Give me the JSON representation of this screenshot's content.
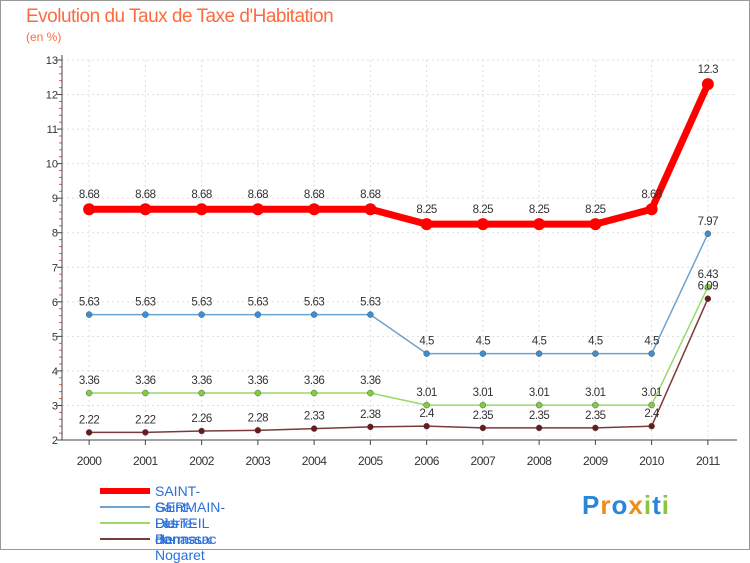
{
  "title": "Evolution du Taux de Taxe d'Habitation",
  "subtitle": "(en %)",
  "logo": {
    "letters": [
      "P",
      "r",
      "o",
      "x",
      "i",
      "t",
      "i"
    ],
    "colors": [
      "#2a86d9",
      "#f08c1a",
      "#2a86d9",
      "#f08c1a",
      "#8bc53f",
      "#2a86d9",
      "#8bc53f"
    ]
  },
  "chart_data": {
    "type": "line",
    "title": "Evolution du Taux de Taxe d'Habitation",
    "ylabel": "(en %)",
    "xlabel": "",
    "ylim": [
      2,
      13
    ],
    "yticks": [
      "2",
      "3",
      "4",
      "5",
      "6",
      "7",
      "8",
      "9",
      "10",
      "11",
      "12",
      "13"
    ],
    "categories": [
      "2000",
      "2001",
      "2002",
      "2003",
      "2004",
      "2005",
      "2006",
      "2007",
      "2008",
      "2009",
      "2010",
      "2011"
    ],
    "grid": true,
    "legend_position": "bottom-left",
    "series": [
      {
        "name": "SAINT-GERMAIN-DU-TEIL",
        "color": "#ff0000",
        "weight": "bold",
        "values": [
          8.68,
          8.68,
          8.68,
          8.68,
          8.68,
          8.68,
          8.25,
          8.25,
          8.25,
          8.25,
          8.68,
          12.3
        ],
        "labels": [
          "8.68",
          "8.68",
          "8.68",
          "8.68",
          "8.68",
          "8.68",
          "8.25",
          "8.25",
          "8.25",
          "8.25",
          "8.68",
          "12.3"
        ]
      },
      {
        "name": "Saint-Pierre-de-Nogaret",
        "color": "#6fa3cf",
        "fill": "#3b8fd6",
        "weight": "normal",
        "values": [
          5.63,
          5.63,
          5.63,
          5.63,
          5.63,
          5.63,
          4.5,
          4.5,
          4.5,
          4.5,
          4.5,
          7.97
        ],
        "labels": [
          "5.63",
          "5.63",
          "5.63",
          "5.63",
          "5.63",
          "5.63",
          "4.5",
          "4.5",
          "4.5",
          "4.5",
          "4.5",
          "7.97"
        ]
      },
      {
        "name": "Les Hermaux",
        "color": "#9ad96a",
        "fill": "#7fd13b",
        "weight": "normal",
        "values": [
          3.36,
          3.36,
          3.36,
          3.36,
          3.36,
          3.36,
          3.01,
          3.01,
          3.01,
          3.01,
          3.01,
          6.43
        ],
        "labels": [
          "3.36",
          "3.36",
          "3.36",
          "3.36",
          "3.36",
          "3.36",
          "3.01",
          "3.01",
          "3.01",
          "3.01",
          "3.01",
          "6.43"
        ]
      },
      {
        "name": "Banassac",
        "color": "#7a3a3a",
        "fill": "#6a1a1a",
        "weight": "normal",
        "values": [
          2.22,
          2.22,
          2.26,
          2.28,
          2.33,
          2.38,
          2.4,
          2.35,
          2.35,
          2.35,
          2.4,
          6.09
        ],
        "labels": [
          "2.22",
          "2.22",
          "2.26",
          "2.28",
          "2.33",
          "2.38",
          "2.4",
          "2.35",
          "2.35",
          "2.35",
          "2.4",
          "6.09"
        ]
      }
    ]
  }
}
